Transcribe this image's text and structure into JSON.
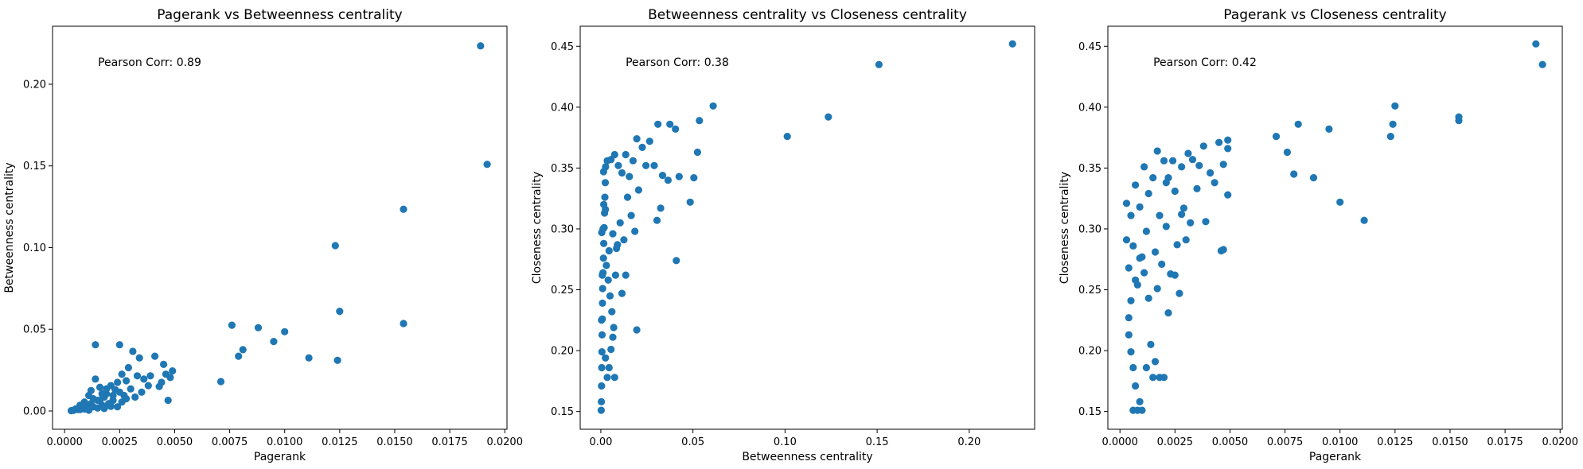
{
  "chart_data": [
    {
      "type": "scatter",
      "title": "Pagerank vs Betweenness centrality",
      "xlabel": "Pagerank",
      "ylabel": "Betweenness centrality",
      "annotation": "Pearson Corr: 0.89",
      "color": "#1f77b4",
      "xlim": [
        -0.00055,
        0.0201
      ],
      "ylim": [
        -0.0112,
        0.2355
      ],
      "xticks": [
        {
          "v": 0.0,
          "label": "0.0000"
        },
        {
          "v": 0.0025,
          "label": "0.0025"
        },
        {
          "v": 0.005,
          "label": "0.0050"
        },
        {
          "v": 0.0075,
          "label": "0.0075"
        },
        {
          "v": 0.01,
          "label": "0.0100"
        },
        {
          "v": 0.0125,
          "label": "0.0125"
        },
        {
          "v": 0.015,
          "label": "0.0150"
        },
        {
          "v": 0.0175,
          "label": "0.0175"
        },
        {
          "v": 0.02,
          "label": "0.0200"
        }
      ],
      "yticks": [
        {
          "v": 0.0,
          "label": "0.00"
        },
        {
          "v": 0.05,
          "label": "0.05"
        },
        {
          "v": 0.1,
          "label": "0.10"
        },
        {
          "v": 0.15,
          "label": "0.15"
        },
        {
          "v": 0.2,
          "label": "0.20"
        }
      ],
      "points": [
        [
          0.0189,
          0.2235
        ],
        [
          0.0192,
          0.151
        ],
        [
          0.0154,
          0.1235
        ],
        [
          0.0154,
          0.0535
        ],
        [
          0.0123,
          0.1012
        ],
        [
          0.0125,
          0.061
        ],
        [
          0.0124,
          0.031
        ],
        [
          0.0111,
          0.0325
        ],
        [
          0.01,
          0.0485
        ],
        [
          0.0095,
          0.0425
        ],
        [
          0.0088,
          0.051
        ],
        [
          0.0081,
          0.0375
        ],
        [
          0.0079,
          0.0335
        ],
        [
          0.0076,
          0.0525
        ],
        [
          0.0071,
          0.018
        ],
        [
          0.0049,
          0.0245
        ],
        [
          0.0048,
          0.0205
        ],
        [
          0.0047,
          0.0065
        ],
        [
          0.0045,
          0.0285
        ],
        [
          0.0043,
          0.015
        ],
        [
          0.0041,
          0.0335
        ],
        [
          0.0038,
          0.0155
        ],
        [
          0.0036,
          0.0195
        ],
        [
          0.0034,
          0.0325
        ],
        [
          0.0033,
          0.0215
        ],
        [
          0.0031,
          0.0365
        ],
        [
          0.0029,
          0.0265
        ],
        [
          0.0028,
          0.0185
        ],
        [
          0.0026,
          0.0225
        ],
        [
          0.0025,
          0.0405
        ],
        [
          0.0024,
          0.0175
        ],
        [
          0.0023,
          0.013
        ],
        [
          0.0021,
          0.0155
        ],
        [
          0.0019,
          0.0105
        ],
        [
          0.0018,
          0.0085
        ],
        [
          0.0016,
          0.0145
        ],
        [
          0.0015,
          0.0065
        ],
        [
          0.0014,
          0.0195
        ],
        [
          0.0014,
          0.0405
        ],
        [
          0.0012,
          0.0045
        ],
        [
          0.0011,
          0.0095
        ],
        [
          0.001,
          0.0025
        ],
        [
          0.0009,
          0.0055
        ],
        [
          0.0008,
          0.0015
        ],
        [
          0.0007,
          0.0035
        ],
        [
          0.0006,
          0.0008
        ],
        [
          0.0005,
          0.0012
        ],
        [
          0.0004,
          0.0004
        ],
        [
          0.0003,
          0.0002
        ],
        [
          0.0035,
          0.0115
        ],
        [
          0.0032,
          0.0085
        ],
        [
          0.003,
          0.0135
        ],
        [
          0.0027,
          0.0095
        ],
        [
          0.0022,
          0.0065
        ],
        [
          0.002,
          0.0045
        ],
        [
          0.0017,
          0.0035
        ],
        [
          0.0013,
          0.0025
        ],
        [
          0.0039,
          0.0215
        ],
        [
          0.0044,
          0.0175
        ],
        [
          0.0046,
          0.0225
        ],
        [
          0.0012,
          0.0125
        ],
        [
          0.0016,
          0.0065
        ],
        [
          0.0019,
          0.0135
        ],
        [
          0.0022,
          0.0095
        ],
        [
          0.0026,
          0.0055
        ],
        [
          0.0028,
          0.0075
        ],
        [
          0.0024,
          0.0025
        ],
        [
          0.0018,
          0.0015
        ],
        [
          0.0009,
          0.0012
        ],
        [
          0.0007,
          0.0008
        ],
        [
          0.0011,
          0.0005
        ],
        [
          0.0015,
          0.0018
        ],
        [
          0.0021,
          0.0028
        ],
        [
          0.0017,
          0.0105
        ],
        [
          0.0013,
          0.0075
        ],
        [
          0.0025,
          0.0115
        ]
      ]
    },
    {
      "type": "scatter",
      "title": "Betweenness centrality vs Closeness centrality",
      "xlabel": "Betweenness centrality",
      "ylabel": "Closeness centrality",
      "annotation": "Pearson Corr: 0.38",
      "color": "#1f77b4",
      "xlim": [
        -0.0112,
        0.2355
      ],
      "ylim": [
        0.1354,
        0.4665
      ],
      "xticks": [
        {
          "v": 0.0,
          "label": "0.00"
        },
        {
          "v": 0.05,
          "label": "0.05"
        },
        {
          "v": 0.1,
          "label": "0.10"
        },
        {
          "v": 0.15,
          "label": "0.15"
        },
        {
          "v": 0.2,
          "label": "0.20"
        }
      ],
      "yticks": [
        {
          "v": 0.15,
          "label": "0.15"
        },
        {
          "v": 0.2,
          "label": "0.20"
        },
        {
          "v": 0.25,
          "label": "0.25"
        },
        {
          "v": 0.3,
          "label": "0.30"
        },
        {
          "v": 0.35,
          "label": "0.35"
        },
        {
          "v": 0.4,
          "label": "0.40"
        },
        {
          "v": 0.45,
          "label": "0.45"
        }
      ],
      "points": [
        [
          0.2235,
          0.452
        ],
        [
          0.151,
          0.435
        ],
        [
          0.1235,
          0.392
        ],
        [
          0.1012,
          0.376
        ],
        [
          0.061,
          0.401
        ],
        [
          0.0535,
          0.389
        ],
        [
          0.0525,
          0.363
        ],
        [
          0.0505,
          0.342
        ],
        [
          0.0485,
          0.322
        ],
        [
          0.0425,
          0.343
        ],
        [
          0.041,
          0.274
        ],
        [
          0.0405,
          0.382
        ],
        [
          0.0375,
          0.386
        ],
        [
          0.0365,
          0.34
        ],
        [
          0.0335,
          0.344
        ],
        [
          0.0325,
          0.317
        ],
        [
          0.031,
          0.386
        ],
        [
          0.0305,
          0.307
        ],
        [
          0.029,
          0.352
        ],
        [
          0.0265,
          0.372
        ],
        [
          0.0245,
          0.352
        ],
        [
          0.0225,
          0.367
        ],
        [
          0.0205,
          0.332
        ],
        [
          0.0195,
          0.374
        ],
        [
          0.0185,
          0.298
        ],
        [
          0.0175,
          0.356
        ],
        [
          0.0165,
          0.311
        ],
        [
          0.0155,
          0.343
        ],
        [
          0.0145,
          0.326
        ],
        [
          0.0135,
          0.361
        ],
        [
          0.0125,
          0.291
        ],
        [
          0.0115,
          0.346
        ],
        [
          0.0105,
          0.305
        ],
        [
          0.0095,
          0.352
        ],
        [
          0.0085,
          0.284
        ],
        [
          0.0075,
          0.361
        ],
        [
          0.0065,
          0.296
        ],
        [
          0.0055,
          0.357
        ],
        [
          0.0045,
          0.282
        ],
        [
          0.0035,
          0.356
        ],
        [
          0.0025,
          0.316
        ],
        [
          0.0015,
          0.347
        ],
        [
          0.0005,
          0.297
        ],
        [
          0.0002,
          0.151
        ],
        [
          0.0003,
          0.158
        ],
        [
          0.0004,
          0.171
        ],
        [
          0.0005,
          0.186
        ],
        [
          0.0006,
          0.199
        ],
        [
          0.0007,
          0.213
        ],
        [
          0.0008,
          0.226
        ],
        [
          0.0009,
          0.239
        ],
        [
          0.001,
          0.251
        ],
        [
          0.0012,
          0.264
        ],
        [
          0.0014,
          0.276
        ],
        [
          0.0016,
          0.288
        ],
        [
          0.0018,
          0.301
        ],
        [
          0.002,
          0.313
        ],
        [
          0.0022,
          0.326
        ],
        [
          0.0024,
          0.338
        ],
        [
          0.0026,
          0.351
        ],
        [
          0.0004,
          0.225
        ],
        [
          0.0008,
          0.262
        ],
        [
          0.0012,
          0.3
        ],
        [
          0.0016,
          0.32
        ],
        [
          0.003,
          0.27
        ],
        [
          0.004,
          0.258
        ],
        [
          0.005,
          0.245
        ],
        [
          0.006,
          0.232
        ],
        [
          0.007,
          0.219
        ],
        [
          0.008,
          0.262
        ],
        [
          0.009,
          0.287
        ],
        [
          0.0195,
          0.217
        ],
        [
          0.0115,
          0.247
        ],
        [
          0.0135,
          0.262
        ],
        [
          0.0035,
          0.178
        ],
        [
          0.0045,
          0.186
        ],
        [
          0.0055,
          0.201
        ],
        [
          0.0065,
          0.211
        ],
        [
          0.0075,
          0.178
        ],
        [
          0.0025,
          0.194
        ]
      ]
    },
    {
      "type": "scatter",
      "title": "Pagerank vs Closeness centrality",
      "xlabel": "Pagerank",
      "ylabel": "Closeness centrality",
      "annotation": "Pearson Corr: 0.42",
      "color": "#1f77b4",
      "xlim": [
        -0.00055,
        0.0201
      ],
      "ylim": [
        0.1354,
        0.4665
      ],
      "xticks": [
        {
          "v": 0.0,
          "label": "0.0000"
        },
        {
          "v": 0.0025,
          "label": "0.0025"
        },
        {
          "v": 0.005,
          "label": "0.0050"
        },
        {
          "v": 0.0075,
          "label": "0.0075"
        },
        {
          "v": 0.01,
          "label": "0.0100"
        },
        {
          "v": 0.0125,
          "label": "0.0125"
        },
        {
          "v": 0.015,
          "label": "0.0150"
        },
        {
          "v": 0.0175,
          "label": "0.0175"
        },
        {
          "v": 0.02,
          "label": "0.0200"
        }
      ],
      "yticks": [
        {
          "v": 0.15,
          "label": "0.15"
        },
        {
          "v": 0.2,
          "label": "0.20"
        },
        {
          "v": 0.25,
          "label": "0.25"
        },
        {
          "v": 0.3,
          "label": "0.30"
        },
        {
          "v": 0.35,
          "label": "0.35"
        },
        {
          "v": 0.4,
          "label": "0.40"
        },
        {
          "v": 0.45,
          "label": "0.45"
        }
      ],
      "points": [
        [
          0.0189,
          0.452
        ],
        [
          0.0192,
          0.435
        ],
        [
          0.0154,
          0.392
        ],
        [
          0.0154,
          0.389
        ],
        [
          0.0125,
          0.401
        ],
        [
          0.0124,
          0.386
        ],
        [
          0.0123,
          0.376
        ],
        [
          0.0111,
          0.307
        ],
        [
          0.01,
          0.322
        ],
        [
          0.0095,
          0.382
        ],
        [
          0.0088,
          0.342
        ],
        [
          0.0081,
          0.386
        ],
        [
          0.0079,
          0.345
        ],
        [
          0.0076,
          0.363
        ],
        [
          0.0071,
          0.376
        ],
        [
          0.0049,
          0.373
        ],
        [
          0.0049,
          0.366
        ],
        [
          0.0049,
          0.328
        ],
        [
          0.0047,
          0.283
        ],
        [
          0.0046,
          0.282
        ],
        [
          0.0045,
          0.371
        ],
        [
          0.0047,
          0.353
        ],
        [
          0.0043,
          0.338
        ],
        [
          0.0041,
          0.346
        ],
        [
          0.0039,
          0.306
        ],
        [
          0.0038,
          0.368
        ],
        [
          0.0036,
          0.352
        ],
        [
          0.0035,
          0.333
        ],
        [
          0.0033,
          0.357
        ],
        [
          0.0032,
          0.305
        ],
        [
          0.0031,
          0.362
        ],
        [
          0.003,
          0.291
        ],
        [
          0.0029,
          0.317
        ],
        [
          0.0028,
          0.351
        ],
        [
          0.0027,
          0.247
        ],
        [
          0.0026,
          0.287
        ],
        [
          0.0025,
          0.331
        ],
        [
          0.0024,
          0.356
        ],
        [
          0.0023,
          0.263
        ],
        [
          0.0022,
          0.342
        ],
        [
          0.0021,
          0.302
        ],
        [
          0.002,
          0.356
        ],
        [
          0.0019,
          0.271
        ],
        [
          0.0018,
          0.311
        ],
        [
          0.0017,
          0.364
        ],
        [
          0.0016,
          0.281
        ],
        [
          0.0015,
          0.342
        ],
        [
          0.0014,
          0.205
        ],
        [
          0.0013,
          0.329
        ],
        [
          0.0012,
          0.298
        ],
        [
          0.0011,
          0.351
        ],
        [
          0.001,
          0.277
        ],
        [
          0.0009,
          0.318
        ],
        [
          0.0008,
          0.254
        ],
        [
          0.0007,
          0.336
        ],
        [
          0.0006,
          0.286
        ],
        [
          0.0005,
          0.311
        ],
        [
          0.0004,
          0.227
        ],
        [
          0.0003,
          0.291
        ],
        [
          0.0006,
          0.151
        ],
        [
          0.0008,
          0.151
        ],
        [
          0.001,
          0.151
        ],
        [
          0.0009,
          0.158
        ],
        [
          0.0007,
          0.171
        ],
        [
          0.0006,
          0.186
        ],
        [
          0.0005,
          0.199
        ],
        [
          0.0004,
          0.213
        ],
        [
          0.0015,
          0.178
        ],
        [
          0.0018,
          0.178
        ],
        [
          0.002,
          0.178
        ],
        [
          0.0012,
          0.186
        ],
        [
          0.0016,
          0.191
        ],
        [
          0.0022,
          0.231
        ],
        [
          0.0025,
          0.262
        ],
        [
          0.0017,
          0.251
        ],
        [
          0.0013,
          0.243
        ],
        [
          0.0011,
          0.264
        ],
        [
          0.0009,
          0.276
        ],
        [
          0.0007,
          0.258
        ],
        [
          0.0005,
          0.241
        ],
        [
          0.0004,
          0.268
        ],
        [
          0.0003,
          0.321
        ],
        [
          0.0021,
          0.338
        ],
        [
          0.0028,
          0.312
        ]
      ]
    }
  ]
}
